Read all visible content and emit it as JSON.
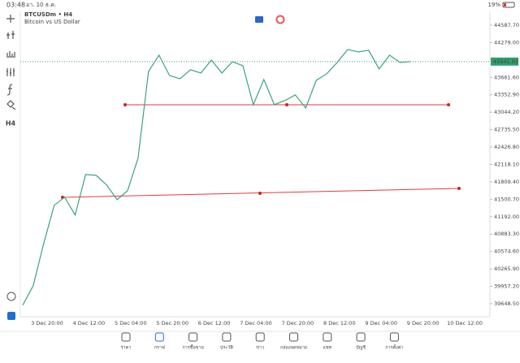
{
  "status_bar": {
    "time": "03:48",
    "date": "อา. 10 ธ.ค.",
    "battery": "19%"
  },
  "toolbar": {
    "timeframe": "H4"
  },
  "chart_data": {
    "type": "line",
    "title": "BTCUSDm • H4",
    "subtitle": "Bitcoin vs US Dollar",
    "series": [
      {
        "name": "BTCUSDm",
        "color": "#3aa57a",
        "values": [
          39622.7,
          39968,
          40717,
          41393,
          41537,
          41220,
          41940,
          41925,
          41753,
          41494,
          41652,
          42228,
          43768,
          44056,
          43696,
          43638,
          43796,
          43739,
          43969,
          43739,
          43940,
          43868,
          43178,
          43624,
          43178,
          43250,
          43350,
          43120,
          43609,
          43724,
          43926,
          44156,
          44113,
          44142,
          43811,
          44056,
          43926,
          43941.83
        ]
      }
    ],
    "current_price": {
      "value": 43941.83,
      "label": "43941.83"
    },
    "xticks": [
      "3 Dec 20:00",
      "4 Dec 12:00",
      "5 Dec 04:00",
      "5 Dec 20:00",
      "6 Dec 12:00",
      "7 Dec 04:00",
      "7 Dec 20:00",
      "8 Dec 12:00",
      "9 Dec 04:00",
      "9 Dec 20:00",
      "10 Dec 12:00"
    ],
    "ylim": [
      39418,
      44832
    ],
    "yticks": [
      {
        "value": 44587.7,
        "label": "44587.70"
      },
      {
        "value": 44279,
        "label": "44279.00"
      },
      {
        "value": 43661.6,
        "label": "43661.60"
      },
      {
        "value": 43352.9,
        "label": "43352.90"
      },
      {
        "value": 43044.2,
        "label": "43044.20"
      },
      {
        "value": 42735.5,
        "label": "42735.50"
      },
      {
        "value": 42426.8,
        "label": "42426.80"
      },
      {
        "value": 42118.1,
        "label": "42118.10"
      },
      {
        "value": 41809.4,
        "label": "41809.40"
      },
      {
        "value": 41500.7,
        "label": "41500.70"
      },
      {
        "value": 41192,
        "label": "41192.00"
      },
      {
        "value": 40883.3,
        "label": "40883.30"
      },
      {
        "value": 40574.6,
        "label": "40574.60"
      },
      {
        "value": 40265.9,
        "label": "40265.90"
      },
      {
        "value": 39957.2,
        "label": "39957.20"
      },
      {
        "value": 39648.5,
        "label": "39648.50"
      }
    ]
  },
  "nav": [
    "ราคา",
    "กราฟ",
    "การซื้อขาย",
    "ประวัติ",
    "ข่าว",
    "กล่องจดหมาย",
    "แชท",
    "บัญชี",
    "การตั้งค่า"
  ]
}
